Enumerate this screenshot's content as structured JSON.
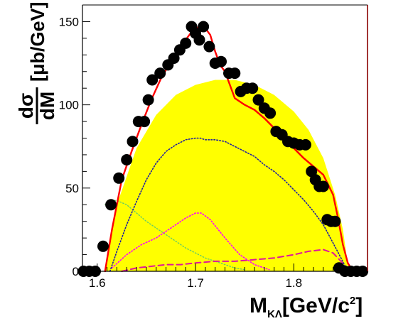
{
  "chart_data": {
    "type": "scatter",
    "title": "",
    "xlabel": {
      "main": "M",
      "sub": "KΛ",
      "unit_pre": "[GeV/c",
      "unit_sup": "2",
      "unit_post": "]"
    },
    "ylabel": {
      "num": "dσ",
      "den": "dM",
      "unit": "[μb/GeV]"
    },
    "xlim": [
      1.585,
      1.875
    ],
    "ylim": [
      0,
      160
    ],
    "x_ticks": [
      {
        "value": 1.6,
        "label": "1.6"
      },
      {
        "value": 1.7,
        "label": "1.7"
      },
      {
        "value": 1.8,
        "label": "1.8"
      }
    ],
    "y_ticks": [
      {
        "value": 0,
        "label": "0"
      },
      {
        "value": 50,
        "label": "50"
      },
      {
        "value": 100,
        "label": "100"
      },
      {
        "value": 150,
        "label": "150"
      }
    ],
    "colors": {
      "background": "#ffffff",
      "frame": "#000000",
      "right_edge": "#8b0000",
      "phase_space_fill": "#ffff00",
      "total_curve": "#ff0000",
      "markers": "#000000",
      "blue_dotted": "#1f1f9f",
      "magenta_dotted": "#ff00ff",
      "magenta_dashed": "#e0169b",
      "green_dotted": "#66cc66"
    },
    "series": [
      {
        "kind": "markers",
        "x": [
          1.586,
          1.592,
          1.598,
          1.606,
          1.614,
          1.622,
          1.63,
          1.636,
          1.642,
          1.648,
          1.652,
          1.656,
          1.664,
          1.672,
          1.678,
          1.684,
          1.69,
          1.696,
          1.7,
          1.704,
          1.708,
          1.714,
          1.72,
          1.726,
          1.734,
          1.74,
          1.746,
          1.752,
          1.758,
          1.764,
          1.77,
          1.776,
          1.782,
          1.788,
          1.794,
          1.8,
          1.806,
          1.812,
          1.818,
          1.822,
          1.826,
          1.83,
          1.834,
          1.838,
          1.842,
          1.846,
          1.852,
          1.858,
          1.864,
          1.87
        ],
        "values": [
          0,
          0,
          0,
          15,
          40,
          56,
          67,
          78,
          90,
          90,
          103,
          115,
          119,
          124,
          128,
          133,
          137,
          147,
          143,
          139,
          147,
          135,
          125,
          126,
          119,
          119,
          108,
          110,
          110,
          103,
          98,
          95,
          84,
          82,
          78,
          77,
          76,
          76,
          60,
          55,
          51,
          51,
          31,
          30,
          30,
          2,
          0,
          0,
          0,
          0
        ]
      },
      {
        "kind": "phase_space_fill",
        "x": [
          1.608,
          1.62,
          1.64,
          1.66,
          1.68,
          1.7,
          1.72,
          1.74,
          1.76,
          1.78,
          1.8,
          1.815,
          1.83,
          1.842,
          1.85,
          1.856
        ],
        "values": [
          0,
          40,
          74,
          94,
          106,
          112,
          115,
          115,
          112,
          106,
          96,
          85,
          68,
          46,
          25,
          0
        ]
      },
      {
        "kind": "total_curve",
        "x": [
          1.608,
          1.615,
          1.625,
          1.635,
          1.645,
          1.655,
          1.665,
          1.675,
          1.685,
          1.695,
          1.7,
          1.705,
          1.71,
          1.715,
          1.72,
          1.725,
          1.73,
          1.74,
          1.75,
          1.76,
          1.77,
          1.78,
          1.79,
          1.8,
          1.81,
          1.82,
          1.83,
          1.84,
          1.845,
          1.85,
          1.855,
          1.86
        ],
        "values": [
          0,
          25,
          55,
          72,
          88,
          103,
          116,
          126,
          135,
          143,
          146,
          147,
          146,
          142,
          132,
          124,
          120,
          104,
          100,
          97,
          92,
          86,
          80,
          74,
          68,
          63,
          58,
          46,
          32,
          16,
          5,
          0
        ]
      },
      {
        "kind": "blue_dotted",
        "x": [
          1.613,
          1.62,
          1.63,
          1.64,
          1.65,
          1.66,
          1.67,
          1.68,
          1.69,
          1.7,
          1.705,
          1.71,
          1.72,
          1.73,
          1.74,
          1.75,
          1.76,
          1.77,
          1.78,
          1.79,
          1.8,
          1.81,
          1.82,
          1.83,
          1.84,
          1.848,
          1.855
        ],
        "values": [
          0,
          12,
          28,
          42,
          55,
          65,
          72,
          76,
          79,
          80,
          80,
          79,
          79,
          78,
          75,
          72,
          69,
          64,
          60,
          55,
          49,
          43,
          36,
          28,
          17,
          8,
          0
        ]
      },
      {
        "kind": "green_dotted",
        "x": [
          1.608,
          1.615,
          1.622,
          1.63,
          1.64,
          1.65,
          1.66,
          1.67,
          1.68,
          1.69,
          1.7,
          1.71,
          1.72,
          1.73,
          1.74,
          1.75
        ],
        "values": [
          40,
          43,
          42,
          40,
          35,
          30,
          26,
          22,
          18,
          14,
          11,
          8,
          6,
          4,
          2,
          1
        ]
      },
      {
        "kind": "magenta_dotted",
        "x": [
          1.615,
          1.63,
          1.645,
          1.66,
          1.675,
          1.69,
          1.7,
          1.706,
          1.715,
          1.73,
          1.745,
          1.76,
          1.775
        ],
        "values": [
          2,
          10,
          16,
          20,
          26,
          32,
          35,
          35,
          31,
          20,
          10,
          4,
          1
        ]
      },
      {
        "kind": "magenta_dashed",
        "x": [
          1.625,
          1.64,
          1.655,
          1.67,
          1.685,
          1.7,
          1.72,
          1.74,
          1.76,
          1.78,
          1.8,
          1.815,
          1.83,
          1.84,
          1.848,
          1.855
        ],
        "values": [
          0,
          2,
          3,
          4,
          4,
          5,
          6,
          6,
          7,
          8,
          10,
          12,
          13,
          11,
          6,
          1
        ]
      }
    ]
  }
}
